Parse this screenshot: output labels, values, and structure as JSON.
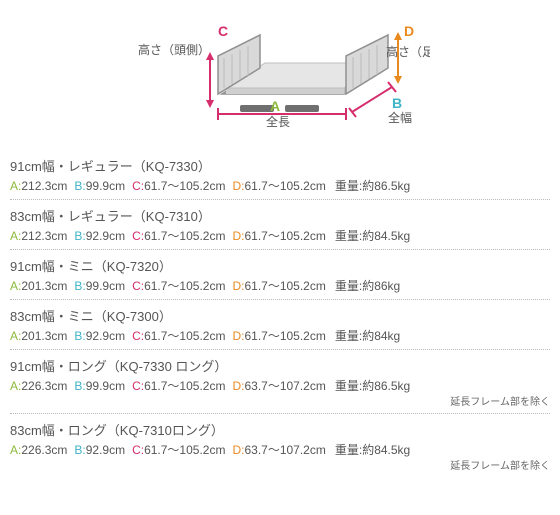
{
  "diagram": {
    "labels": {
      "A": {
        "letter": "A",
        "text": "全長",
        "color": "#8cba3b"
      },
      "B": {
        "letter": "B",
        "text": "全幅",
        "color": "#3fb4c6"
      },
      "C": {
        "letter": "C",
        "text": "高さ（頭側）",
        "color": "#d62d6d"
      },
      "D": {
        "letter": "D",
        "text": "高さ（足側）",
        "color": "#e98a1f"
      }
    },
    "colors": {
      "frame": "#909090",
      "mattress": "#cfcfcf",
      "mattress_top": "#e6e6e6",
      "base": "#6f6f6f"
    }
  },
  "entries": [
    {
      "title": "91cm幅・レギュラー（KQ-7330）",
      "A": "212.3cm",
      "B": "99.9cm",
      "C": "61.7～105.2cm",
      "D": "61.7～105.2cm",
      "weight": "約86.5kg",
      "note": null
    },
    {
      "title": "83cm幅・レギュラー（KQ-7310）",
      "A": "212.3cm",
      "B": "92.9cm",
      "C": "61.7～105.2cm",
      "D": "61.7～105.2cm",
      "weight": "約84.5kg",
      "note": null
    },
    {
      "title": "91cm幅・ミニ（KQ-7320）",
      "A": "201.3cm",
      "B": "99.9cm",
      "C": "61.7～105.2cm",
      "D": "61.7～105.2cm",
      "weight": "約86kg",
      "note": null
    },
    {
      "title": "83cm幅・ミニ（KQ-7300）",
      "A": "201.3cm",
      "B": "92.9cm",
      "C": "61.7～105.2cm",
      "D": "61.7～105.2cm",
      "weight": "約84kg",
      "note": null
    },
    {
      "title": "91cm幅・ロング（KQ-7330 ロング）",
      "A": "226.3cm",
      "B": "99.9cm",
      "C": "61.7～105.2cm",
      "D": "63.7～107.2cm",
      "weight": "約86.5kg",
      "note": "延長フレーム部を除く"
    },
    {
      "title": "83cm幅・ロング（KQ-7310ロング）",
      "A": "226.3cm",
      "B": "92.9cm",
      "C": "61.7～105.2cm",
      "D": "63.7～107.2cm",
      "weight": "約84.5kg",
      "note": "延長フレーム部を除く"
    }
  ],
  "static": {
    "weight_label": "重量:"
  }
}
